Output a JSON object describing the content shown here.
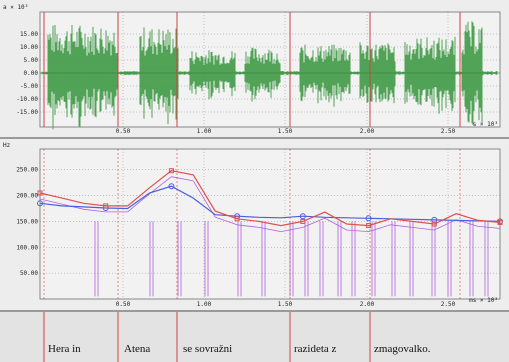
{
  "colors": {
    "waveform": "#3f9a45",
    "marker": "#d04040",
    "pitch_blue": "#4a5fe0",
    "pitch_red": "#e05050",
    "pitch_violet": "#b060e0",
    "grid": "#777777"
  },
  "waveform_panel": {
    "y_unit": "a × 10³",
    "y_ticks": [
      "15.00",
      "10.00",
      "5.00",
      "0.00",
      "-5.00",
      "-10.00",
      "-15.00"
    ],
    "x_ticks": [
      "0.50",
      "1.00",
      "1.50",
      "2.00",
      "2.50"
    ],
    "x_unit": "s × 10³"
  },
  "pitch_panel": {
    "y_unit": "Hz",
    "y_ticks": [
      "250.00",
      "200.00",
      "150.00",
      "100.00",
      "50.00"
    ],
    "x_ticks": [
      "0.50",
      "1.00",
      "1.50",
      "2.00",
      "2.50"
    ],
    "x_unit": "ms × 10³"
  },
  "words": [
    "Hera in",
    "Atena",
    "se sovražni",
    "razideta z",
    "zmagovalko."
  ],
  "word_boundaries_s": [
    0.0,
    0.24,
    0.57,
    0.82,
    1.42,
    1.92
  ],
  "chart_data": {
    "type": "line",
    "xlabel": "ms × 10³",
    "ylabel": "Hz",
    "xlim": [
      -0.3,
      2.85
    ],
    "ylim": [
      0,
      290
    ],
    "grid": true,
    "series": [
      {
        "x": [
          -0.3,
          -0.15,
          0.0,
          0.15,
          0.3,
          0.45,
          0.6,
          0.75,
          0.9,
          1.05,
          1.2,
          1.35,
          1.5,
          1.65,
          1.8,
          1.95,
          2.1,
          2.25,
          2.4,
          2.55,
          2.7,
          2.85
        ],
        "values": [
          185,
          180,
          178,
          176,
          175,
          205,
          218,
          195,
          163,
          160,
          158,
          157,
          160,
          158,
          157,
          156,
          155,
          154,
          153,
          152,
          151,
          150
        ]
      },
      {
        "x": [
          -0.3,
          -0.15,
          0.0,
          0.15,
          0.3,
          0.45,
          0.6,
          0.75,
          0.9,
          1.05,
          1.2,
          1.35,
          1.5,
          1.65,
          1.8,
          1.95,
          2.1,
          2.25,
          2.4,
          2.55,
          2.7,
          2.85
        ],
        "values": [
          205,
          195,
          185,
          180,
          180,
          215,
          248,
          240,
          170,
          155,
          150,
          142,
          150,
          168,
          145,
          142,
          155,
          150,
          145,
          165,
          152,
          148
        ]
      }
    ]
  }
}
